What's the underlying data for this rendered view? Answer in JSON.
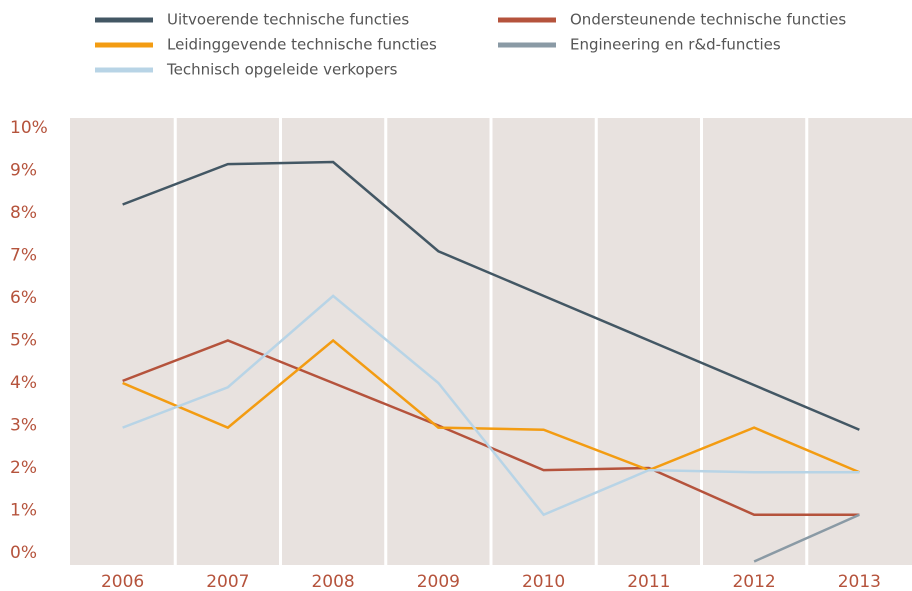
{
  "chart_data": {
    "type": "line",
    "categories": [
      "2006",
      "2007",
      "2008",
      "2009",
      "2010",
      "2011",
      "2012",
      "2013"
    ],
    "series": [
      {
        "name": "Uitvoerende technische functies",
        "color": "#435764",
        "values": [
          8.2,
          9.15,
          9.2,
          7.1,
          6.05,
          5.0,
          3.95,
          2.9
        ]
      },
      {
        "name": "Ondersteunende technische functies",
        "color": "#b5533c",
        "values": [
          4.05,
          5.0,
          4.0,
          3.0,
          1.95,
          2.0,
          0.9,
          0.9
        ]
      },
      {
        "name": "Leidinggevende technische functies",
        "color": "#f39c12",
        "values": [
          4.0,
          2.95,
          5.0,
          2.95,
          2.9,
          1.95,
          2.95,
          1.9
        ]
      },
      {
        "name": "Engineering en r&d-functies",
        "color": "#8a9aa5",
        "values": [
          null,
          null,
          null,
          null,
          null,
          null,
          -0.2,
          0.9
        ]
      },
      {
        "name": "Technisch opgeleide verkopers",
        "color": "#b8d4e6",
        "values": [
          2.95,
          3.9,
          6.05,
          4.0,
          0.9,
          1.95,
          1.9,
          1.9
        ]
      }
    ],
    "ylim": [
      0,
      10
    ],
    "yticks": [
      {
        "value": 0,
        "label": "0%"
      },
      {
        "value": 1,
        "label": "1%"
      },
      {
        "value": 2,
        "label": "2%"
      },
      {
        "value": 3,
        "label": "3%"
      },
      {
        "value": 4,
        "label": "4%"
      },
      {
        "value": 5,
        "label": "5%"
      },
      {
        "value": 6,
        "label": "6%"
      },
      {
        "value": 7,
        "label": "7%"
      },
      {
        "value": 8,
        "label": "8%"
      },
      {
        "value": 9,
        "label": "9%"
      },
      {
        "value": 10,
        "label": "10%"
      }
    ]
  }
}
